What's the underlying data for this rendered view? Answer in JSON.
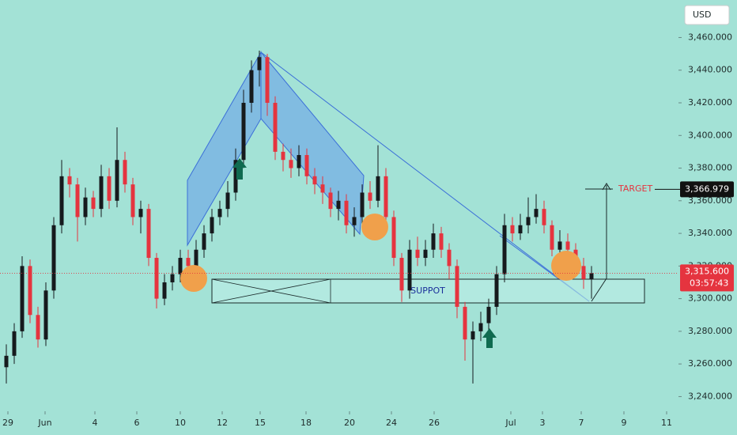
{
  "chart_data": {
    "type": "candlestick",
    "currency": "USD",
    "grid": false,
    "up_color": "#161a1d",
    "down_color": "#e5343f",
    "xlim": [
      0,
      85.8
    ],
    "ylim": [
      3231,
      3483
    ],
    "xticks": [
      {
        "value": 1.0,
        "label": "29"
      },
      {
        "value": 5.7,
        "label": "Jun"
      },
      {
        "value": 12.0,
        "label": "4"
      },
      {
        "value": 17.3,
        "label": "6"
      },
      {
        "value": 22.8,
        "label": "10"
      },
      {
        "value": 28.1,
        "label": "12"
      },
      {
        "value": 32.9,
        "label": "15"
      },
      {
        "value": 38.7,
        "label": "18"
      },
      {
        "value": 44.2,
        "label": "20"
      },
      {
        "value": 49.5,
        "label": "24"
      },
      {
        "value": 54.9,
        "label": "26"
      },
      {
        "value": 64.6,
        "label": "Jul"
      },
      {
        "value": 68.6,
        "label": "3"
      },
      {
        "value": 73.5,
        "label": "7"
      },
      {
        "value": 78.9,
        "label": "9"
      },
      {
        "value": 84.3,
        "label": "11"
      }
    ],
    "yticks": [
      {
        "value": 3240,
        "label": "3,240.000"
      },
      {
        "value": 3260,
        "label": "3,260.000"
      },
      {
        "value": 3280,
        "label": "3,280.000"
      },
      {
        "value": 3300,
        "label": "3,300.000"
      },
      {
        "value": 3320,
        "label": "3,320.000"
      },
      {
        "value": 3340,
        "label": "3,340.000"
      },
      {
        "value": 3360,
        "label": "3,360.000"
      },
      {
        "value": 3380,
        "label": "3,380.000"
      },
      {
        "value": 3400,
        "label": "3,400.000"
      },
      {
        "value": 3420,
        "label": "3,420.000"
      },
      {
        "value": 3440,
        "label": "3,440.000"
      },
      {
        "value": 3460,
        "label": "3,460.000"
      }
    ],
    "x": [
      0.8,
      1.8,
      2.8,
      3.8,
      4.8,
      5.8,
      6.8,
      7.8,
      8.8,
      9.8,
      10.8,
      11.8,
      12.8,
      13.8,
      14.8,
      15.8,
      16.8,
      17.8,
      18.8,
      19.8,
      20.8,
      21.8,
      22.8,
      23.8,
      24.8,
      25.8,
      26.8,
      27.8,
      28.8,
      29.8,
      30.8,
      31.8,
      32.8,
      33.8,
      34.8,
      35.8,
      36.8,
      37.8,
      38.8,
      39.8,
      40.8,
      41.8,
      42.8,
      43.8,
      44.8,
      45.8,
      46.8,
      47.8,
      48.8,
      49.8,
      50.8,
      51.8,
      52.8,
      53.8,
      54.8,
      55.8,
      56.8,
      57.8,
      58.8,
      59.8,
      60.8,
      61.8,
      62.8,
      63.8,
      64.8,
      65.8,
      66.8,
      67.8,
      68.8,
      69.8,
      70.8,
      71.8,
      72.8,
      73.8,
      74.8
    ],
    "open": [
      3258,
      3265,
      3280,
      3320,
      3290,
      3275,
      3305,
      3345,
      3375,
      3370,
      3350,
      3362,
      3355,
      3375,
      3360,
      3385,
      3370,
      3350,
      3355,
      3325,
      3300,
      3310,
      3315,
      3325,
      3320,
      3330,
      3340,
      3350,
      3355,
      3365,
      3385,
      3420,
      3440,
      3448,
      3420,
      3390,
      3385,
      3380,
      3388,
      3375,
      3370,
      3365,
      3355,
      3360,
      3345,
      3350,
      3365,
      3360,
      3375,
      3350,
      3325,
      3305,
      3330,
      3325,
      3330,
      3340,
      3330,
      3320,
      3295,
      3275,
      3280,
      3285,
      3295,
      3315,
      3345,
      3340,
      3345,
      3350,
      3355,
      3345,
      3330,
      3335,
      3330,
      3320,
      3312
    ],
    "high": [
      3272,
      3285,
      3326,
      3324,
      3295,
      3310,
      3350,
      3385,
      3380,
      3374,
      3368,
      3366,
      3382,
      3380,
      3405,
      3390,
      3374,
      3360,
      3358,
      3328,
      3315,
      3320,
      3330,
      3330,
      3336,
      3345,
      3355,
      3360,
      3372,
      3392,
      3428,
      3446,
      3452,
      3450,
      3424,
      3395,
      3392,
      3394,
      3392,
      3380,
      3375,
      3368,
      3366,
      3364,
      3356,
      3370,
      3372,
      3394,
      3380,
      3354,
      3328,
      3336,
      3338,
      3336,
      3346,
      3344,
      3334,
      3324,
      3298,
      3286,
      3292,
      3300,
      3320,
      3352,
      3350,
      3352,
      3362,
      3364,
      3360,
      3348,
      3342,
      3340,
      3334,
      3325,
      3320
    ],
    "low": [
      3248,
      3260,
      3276,
      3285,
      3270,
      3271,
      3300,
      3340,
      3362,
      3335,
      3345,
      3350,
      3350,
      3355,
      3356,
      3365,
      3345,
      3340,
      3320,
      3294,
      3296,
      3305,
      3310,
      3315,
      3316,
      3325,
      3335,
      3345,
      3350,
      3360,
      3380,
      3414,
      3430,
      3412,
      3385,
      3378,
      3374,
      3375,
      3370,
      3364,
      3358,
      3350,
      3348,
      3340,
      3338,
      3345,
      3355,
      3356,
      3345,
      3320,
      3298,
      3300,
      3320,
      3320,
      3325,
      3325,
      3312,
      3288,
      3262,
      3248,
      3274,
      3280,
      3290,
      3310,
      3335,
      3336,
      3340,
      3346,
      3340,
      3326,
      3326,
      3325,
      3315,
      3306,
      3300
    ],
    "close": [
      3265,
      3280,
      3320,
      3290,
      3275,
      3305,
      3345,
      3375,
      3370,
      3350,
      3362,
      3355,
      3375,
      3360,
      3385,
      3370,
      3350,
      3355,
      3325,
      3300,
      3310,
      3315,
      3325,
      3320,
      3330,
      3340,
      3350,
      3355,
      3365,
      3385,
      3420,
      3440,
      3448,
      3420,
      3390,
      3385,
      3380,
      3388,
      3375,
      3370,
      3365,
      3355,
      3360,
      3345,
      3350,
      3365,
      3360,
      3375,
      3350,
      3325,
      3305,
      3330,
      3325,
      3330,
      3340,
      3330,
      3320,
      3295,
      3275,
      3280,
      3285,
      3295,
      3315,
      3345,
      3340,
      3345,
      3350,
      3355,
      3345,
      3330,
      3335,
      3330,
      3320,
      3312,
      3315.6
    ],
    "support_label": "SUPPOT",
    "target_label": "TARGET",
    "target": {
      "value": 3366.979,
      "label": "3,366.979"
    },
    "last_price": {
      "value": 3315.6,
      "label": "3,315.600"
    },
    "countdown": "03:57:43"
  }
}
